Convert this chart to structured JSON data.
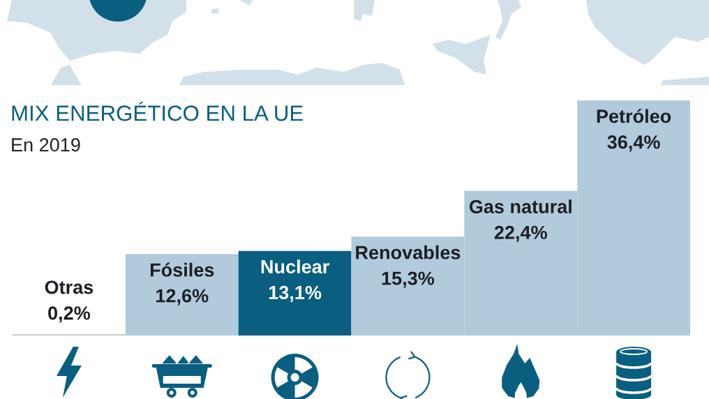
{
  "chart_data": {
    "type": "bar",
    "title": "MIX ENERGÉTICO EN LA UE",
    "subtitle": "En 2019",
    "categories": [
      "Otras",
      "Fósiles",
      "Nuclear",
      "Renovables",
      "Gas natural",
      "Petróleo"
    ],
    "values": [
      0.2,
      12.6,
      13.1,
      15.3,
      22.4,
      36.4
    ],
    "value_labels": [
      "0,2%",
      "12,6%",
      "13,1%",
      "15,3%",
      "22,4%",
      "36,4%"
    ],
    "colors": [
      "#c4c4c4",
      "#b1cbdd",
      "#0a5f80",
      "#b1cbdd",
      "#b1cbdd",
      "#b1cbdd"
    ],
    "tick_labels": "x"
  }
}
